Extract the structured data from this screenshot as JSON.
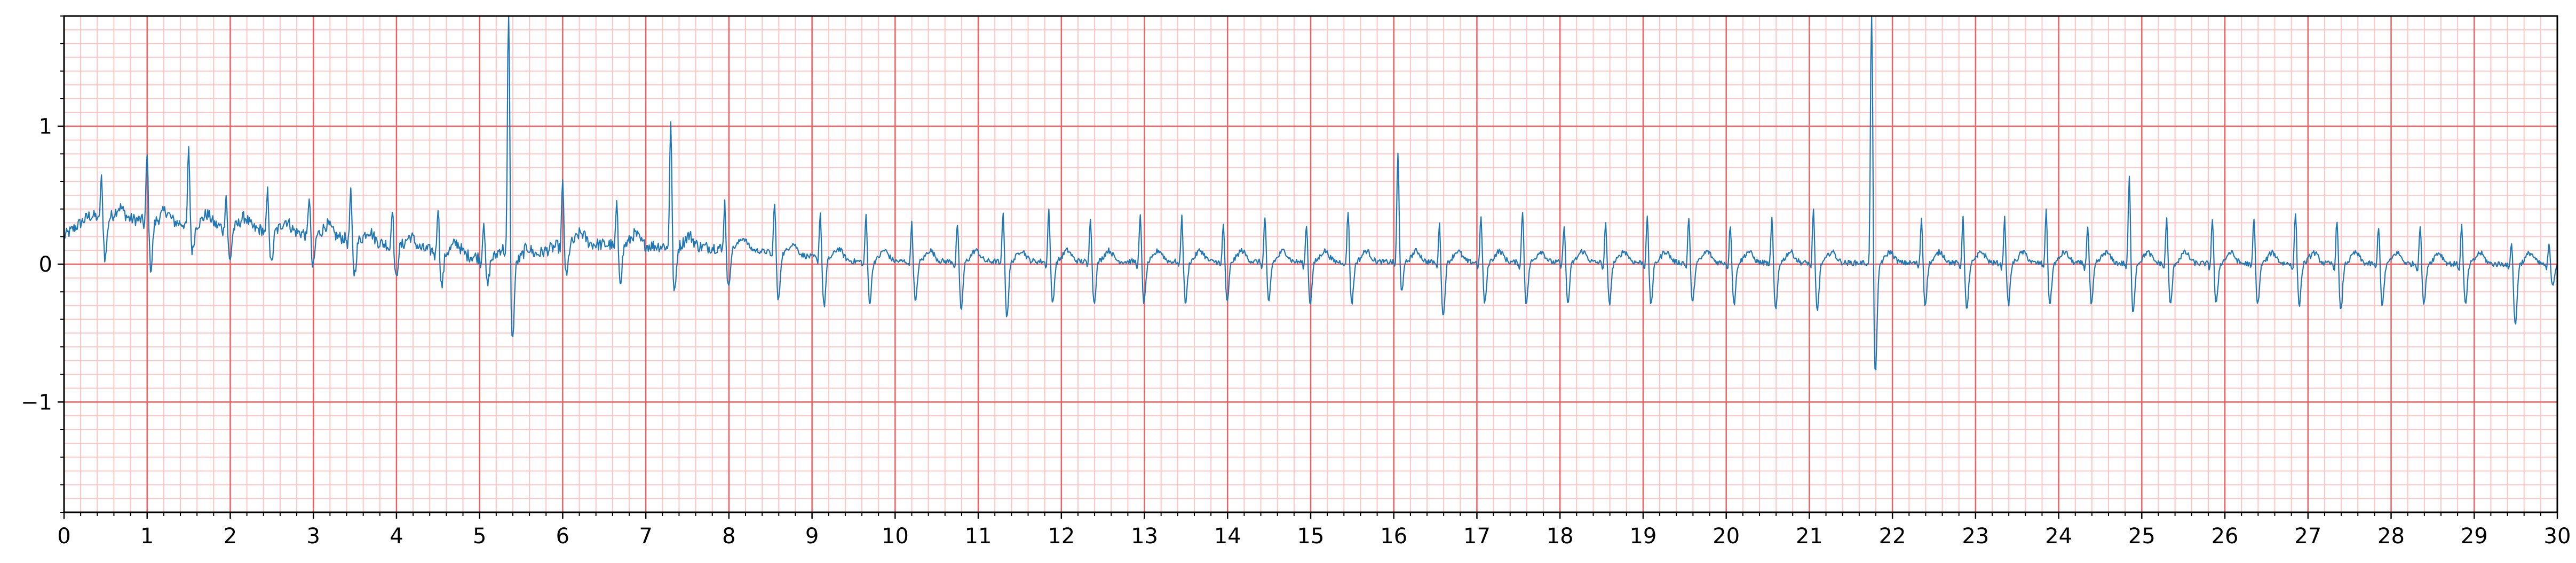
{
  "chart_data": {
    "type": "line",
    "title": "",
    "xlabel": "",
    "ylabel": "",
    "xlim": [
      0,
      30
    ],
    "ylim": [
      -1.8,
      1.8
    ],
    "x_ticks": [
      0,
      1,
      2,
      3,
      4,
      5,
      6,
      7,
      8,
      9,
      10,
      11,
      12,
      13,
      14,
      15,
      16,
      17,
      18,
      19,
      20,
      21,
      22,
      23,
      24,
      25,
      26,
      27,
      28,
      29,
      30
    ],
    "x_tick_labels": [
      "0",
      "1",
      "2",
      "3",
      "4",
      "5",
      "6",
      "7",
      "8",
      "9",
      "10",
      "11",
      "12",
      "13",
      "14",
      "15",
      "16",
      "17",
      "18",
      "19",
      "20",
      "21",
      "22",
      "23",
      "24",
      "25",
      "26",
      "27",
      "28",
      "29",
      "30"
    ],
    "y_ticks": [
      -1,
      0,
      1
    ],
    "y_tick_labels": [
      "−1",
      "0",
      "1"
    ],
    "grid": {
      "major": true,
      "minor": true,
      "major_x_step": 1,
      "minor_x_step": 0.2,
      "major_y_step": 1,
      "minor_y_step": 0.1,
      "major_color": "#f06060",
      "minor_color": "#ffc4c4"
    },
    "line_color": "#1f77b4",
    "series": [
      {
        "sample_rate_hz": 100,
        "beat_times": [
          0.45,
          1.0,
          1.5,
          1.95,
          2.45,
          2.95,
          3.45,
          3.95,
          4.5,
          5.05,
          5.35,
          6.0,
          6.65,
          7.3,
          7.95,
          8.55,
          9.1,
          9.65,
          10.2,
          10.75,
          11.3,
          11.85,
          12.35,
          12.95,
          13.45,
          13.95,
          14.45,
          14.95,
          15.45,
          16.05,
          16.55,
          17.05,
          17.55,
          18.05,
          18.55,
          19.05,
          19.55,
          20.05,
          20.55,
          21.05,
          21.75,
          22.35,
          22.85,
          23.35,
          23.85,
          24.35,
          24.85,
          25.3,
          25.85,
          26.35,
          26.85,
          27.35,
          27.85,
          28.35,
          28.85,
          29.45,
          29.9
        ],
        "r_amplitudes": [
          0.3,
          0.5,
          0.55,
          0.25,
          0.3,
          0.3,
          0.35,
          0.3,
          0.35,
          0.3,
          2.0,
          0.45,
          0.3,
          0.95,
          0.35,
          0.4,
          0.35,
          0.35,
          0.3,
          0.3,
          0.4,
          0.4,
          0.35,
          0.35,
          0.35,
          0.3,
          0.35,
          0.3,
          0.4,
          0.8,
          0.3,
          0.35,
          0.4,
          0.3,
          0.3,
          0.35,
          0.35,
          0.3,
          0.35,
          0.4,
          2.0,
          0.35,
          0.35,
          0.35,
          0.4,
          0.3,
          0.65,
          0.35,
          0.35,
          0.35,
          0.4,
          0.35,
          0.3,
          0.3,
          0.3,
          0.2,
          0.15
        ],
        "s_depths": [
          -0.3,
          -0.35,
          -0.2,
          -0.25,
          -0.25,
          -0.25,
          -0.25,
          -0.25,
          -0.25,
          -0.2,
          -0.6,
          -0.25,
          -0.25,
          -0.35,
          -0.3,
          -0.35,
          -0.35,
          -0.3,
          -0.3,
          -0.35,
          -0.4,
          -0.3,
          -0.3,
          -0.3,
          -0.3,
          -0.3,
          -0.3,
          -0.3,
          -0.3,
          -0.2,
          -0.4,
          -0.3,
          -0.3,
          -0.3,
          -0.3,
          -0.3,
          -0.3,
          -0.3,
          -0.35,
          -0.35,
          -0.8,
          -0.3,
          -0.35,
          -0.3,
          -0.3,
          -0.3,
          -0.35,
          -0.3,
          -0.3,
          -0.3,
          -0.3,
          -0.35,
          -0.3,
          -0.3,
          -0.3,
          -0.45,
          -0.15
        ],
        "baseline_segments": [
          [
            0,
            0.2
          ],
          [
            0.3,
            0.35
          ],
          [
            3.0,
            0.22
          ],
          [
            5.0,
            0.05
          ],
          [
            5.5,
            0.02
          ],
          [
            6.0,
            0.15
          ],
          [
            8.0,
            0.12
          ],
          [
            9.5,
            0.02
          ],
          [
            12.0,
            0.02
          ],
          [
            30,
            0.0
          ]
        ]
      }
    ]
  }
}
